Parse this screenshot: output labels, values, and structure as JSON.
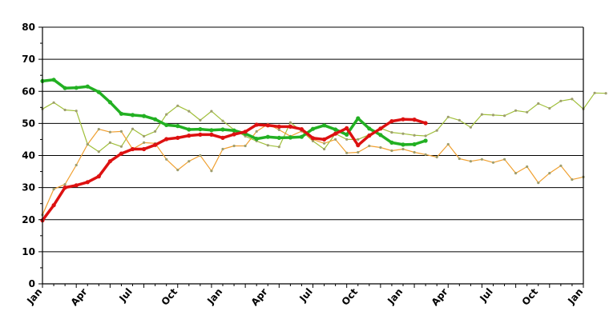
{
  "chart_data": {
    "type": "line",
    "title": "",
    "xlabel": "",
    "ylabel": "",
    "ylim": [
      0,
      80
    ],
    "yticks": [
      0,
      10,
      20,
      30,
      40,
      50,
      60,
      70,
      80
    ],
    "grid": "horizontal",
    "x_tick_labels": [
      "Jan",
      "Apr",
      "Jul",
      "Oct",
      "Jan",
      "Apr",
      "Jul",
      "Oct",
      "Jan",
      "Apr",
      "Jul",
      "Oct",
      "Jan"
    ],
    "x_months_total": 48,
    "colors": {
      "green": "#22b022",
      "red": "#dd1111",
      "olive": "#a0bf3a",
      "orange": "#f0a030",
      "marker": "#9e9e6e"
    },
    "series": [
      {
        "color": "#a0bf3a",
        "width": 1.2,
        "markers": true,
        "values": [
          54.5,
          56.5,
          54.2,
          53.9,
          43.5,
          41.2,
          44,
          42.8,
          48.3,
          46,
          47.5,
          52.8,
          55.5,
          53.8,
          51,
          53.8,
          50.8,
          48,
          46,
          44.5,
          43.2,
          42.7,
          50.3,
          47.6,
          44.5,
          42,
          46.8,
          45,
          45,
          46.5,
          48.5,
          47.2,
          46.8,
          46.3,
          46.1,
          47.8,
          52,
          51,
          48.8,
          52.8,
          52.6,
          52.4,
          54,
          53.5,
          56.2,
          54.7,
          57,
          57.6,
          54.5,
          59.5,
          59.4
        ]
      },
      {
        "color": "#f0a030",
        "width": 1.2,
        "markers": true,
        "values": [
          21.5,
          29.5,
          31,
          37,
          43.5,
          48.2,
          47.3,
          47.5,
          42,
          44,
          43.8,
          38.8,
          35.5,
          38.2,
          40,
          35.2,
          42,
          43,
          43,
          47.5,
          49.8,
          48,
          46,
          47.6,
          45,
          43.8,
          45,
          40.8,
          41,
          43,
          42.5,
          41.5,
          42,
          41,
          40.3,
          39.5,
          43.5,
          39,
          38.2,
          38.8,
          37.8,
          38.8,
          34.5,
          36.5,
          31.5,
          34.5,
          36.8,
          32.5,
          33.3
        ]
      },
      {
        "color": "#22b022",
        "width": 3.5,
        "markers": true,
        "values": [
          63.2,
          63.6,
          61,
          61.1,
          61.5,
          59.8,
          56.6,
          53,
          52.6,
          52.3,
          51.3,
          49.5,
          49.2,
          48.1,
          48.2,
          47.9,
          48.1,
          47.8,
          46.8,
          45.2,
          45.8,
          45.5,
          45.6,
          45.8,
          48.3,
          49.4,
          48.1,
          46.5,
          51.6,
          48.4,
          46.4,
          44,
          43.4,
          43.5,
          44.6
        ]
      },
      {
        "color": "#dd1111",
        "width": 3.5,
        "markers": true,
        "values": [
          19.8,
          24.5,
          30,
          30.7,
          31.7,
          33.5,
          38.2,
          40.6,
          42,
          42,
          43.3,
          45.1,
          45.5,
          46.2,
          46.5,
          46.5,
          45.5,
          46.6,
          47.4,
          49.6,
          49.4,
          49,
          49,
          48.2,
          45.4,
          45,
          46.8,
          48.5,
          43.2,
          46.2,
          48.4,
          50.7,
          51.3,
          51.2,
          50.1
        ]
      }
    ]
  }
}
